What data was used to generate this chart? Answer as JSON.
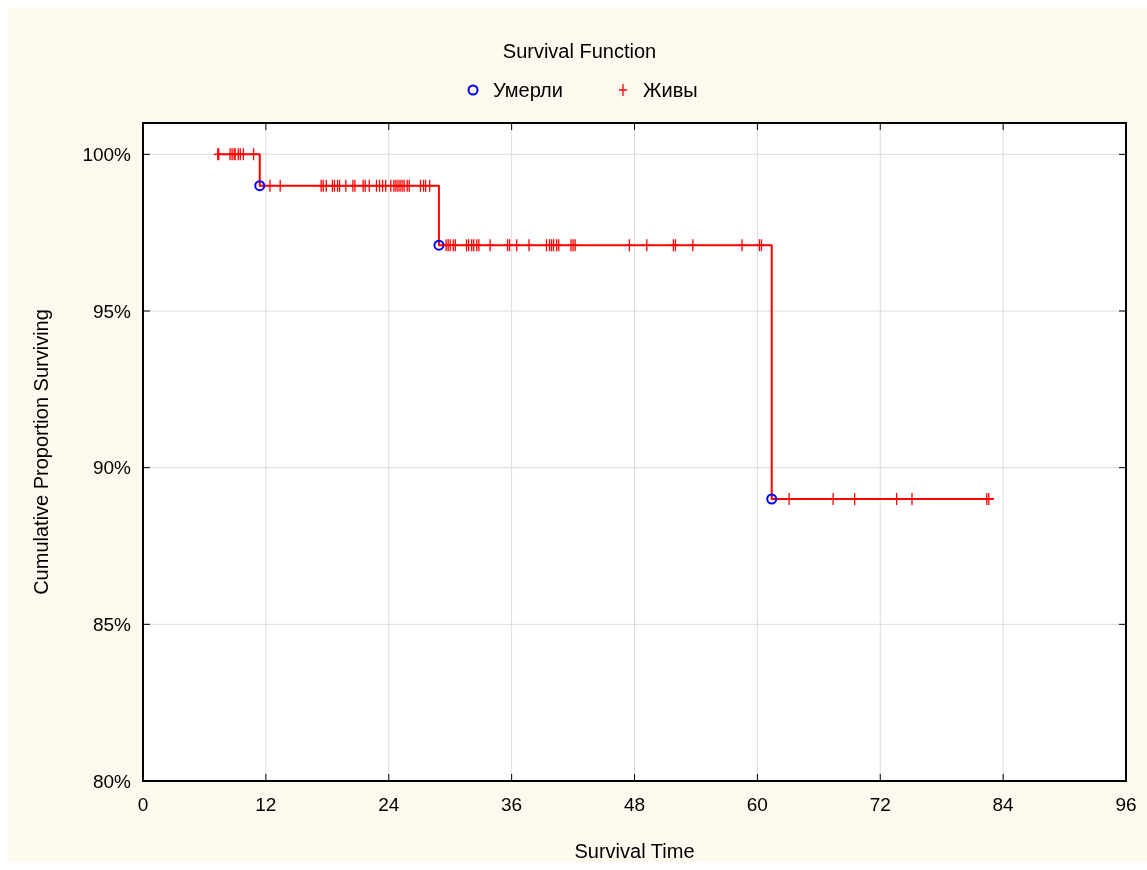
{
  "chart_data": {
    "type": "scatter",
    "title": "Survival Function",
    "xlabel": "Survival Time",
    "ylabel": "Cumulative Proportion Surviving",
    "xlim": [
      0,
      96
    ],
    "xticks": [
      0,
      12,
      24,
      36,
      48,
      60,
      72,
      84,
      96
    ],
    "ylim": [
      80,
      101
    ],
    "yticks": [
      {
        "value": 80,
        "label": "80%"
      },
      {
        "value": 85,
        "label": "85%"
      },
      {
        "value": 90,
        "label": "90%"
      },
      {
        "value": 95,
        "label": "95%"
      },
      {
        "value": 100,
        "label": "100%"
      }
    ],
    "grid": true,
    "legend": "top",
    "series": [
      {
        "type": "step",
        "color": "#ff0000",
        "x": [
          7.3,
          11.4,
          28.9,
          61.4,
          83.1
        ],
        "values": [
          100,
          99.0,
          97.1,
          89.0,
          89.0
        ]
      },
      {
        "name": "Умерли",
        "marker": "circle",
        "color": "#0000ff",
        "x": [
          11.4,
          28.9,
          61.4
        ],
        "values": [
          99.0,
          97.1,
          89.0
        ]
      },
      {
        "name": "Живы",
        "marker": "cross",
        "color": "#ff0000",
        "x": [
          7.3,
          7.4,
          8.5,
          8.7,
          8.9,
          9.0,
          9.3,
          9.5,
          9.8,
          10.8,
          12.4,
          13.4,
          17.4,
          17.6,
          17.9,
          18.5,
          18.7,
          19.0,
          19.2,
          19.8,
          20.5,
          20.7,
          21.5,
          21.7,
          22.1,
          22.8,
          23.1,
          23.4,
          23.7,
          24.2,
          24.5,
          24.7,
          24.9,
          25.1,
          25.3,
          25.5,
          25.8,
          26.0,
          27.1,
          27.4,
          27.6,
          28.0,
          29.6,
          29.8,
          30.0,
          30.3,
          30.5,
          31.6,
          31.8,
          32.1,
          32.3,
          32.6,
          32.8,
          33.9,
          35.6,
          35.8,
          36.5,
          37.7,
          39.4,
          39.7,
          39.9,
          40.1,
          40.4,
          40.6,
          41.8,
          42.0,
          42.2,
          47.5,
          49.2,
          51.8,
          52.0,
          53.7,
          58.5,
          60.2,
          60.4,
          63.1,
          67.4,
          69.5,
          73.6,
          75.1,
          82.4,
          82.6
        ],
        "values": [
          100,
          100,
          100,
          100,
          100,
          100,
          100,
          100,
          100,
          100,
          99.0,
          99.0,
          99.0,
          99.0,
          99.0,
          99.0,
          99.0,
          99.0,
          99.0,
          99.0,
          99.0,
          99.0,
          99.0,
          99.0,
          99.0,
          99.0,
          99.0,
          99.0,
          99.0,
          99.0,
          99.0,
          99.0,
          99.0,
          99.0,
          99.0,
          99.0,
          99.0,
          99.0,
          99.0,
          99.0,
          99.0,
          99.0,
          97.1,
          97.1,
          97.1,
          97.1,
          97.1,
          97.1,
          97.1,
          97.1,
          97.1,
          97.1,
          97.1,
          97.1,
          97.1,
          97.1,
          97.1,
          97.1,
          97.1,
          97.1,
          97.1,
          97.1,
          97.1,
          97.1,
          97.1,
          97.1,
          97.1,
          97.1,
          97.1,
          97.1,
          97.1,
          97.1,
          97.1,
          97.1,
          97.1,
          89.0,
          89.0,
          89.0,
          89.0,
          89.0,
          89.0,
          89.0
        ]
      }
    ]
  }
}
